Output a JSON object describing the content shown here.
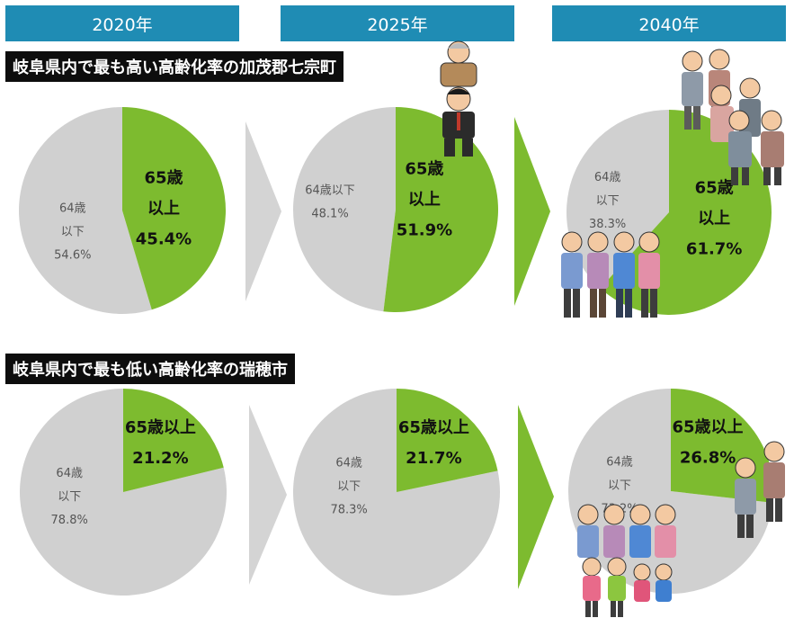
{
  "years": [
    "2020年",
    "2025年",
    "2040年"
  ],
  "rows": [
    {
      "title": "岐阜県内で最も高い高齢化率の加茂郡七宗町"
    },
    {
      "title": "岐阜県内で最も低い高齢化率の瑞穂市"
    }
  ],
  "colors": {
    "header": "#1f8cb4",
    "elderly": "#7dbb2f",
    "younger": "#d0d0d0",
    "title_bg": "#0d0d0d"
  },
  "chart_data": [
    {
      "type": "pie",
      "row": "岐阜県内で最も高い高齢化率の加茂郡七宗町",
      "year": "2020年",
      "slices": [
        {
          "label_lines": [
            "65歳",
            "以上"
          ],
          "pct_text": "45.4%",
          "value": 45.4
        },
        {
          "label_lines": [
            "64歳",
            "以下"
          ],
          "pct_text": "54.6%",
          "value": 54.6
        }
      ]
    },
    {
      "type": "pie",
      "row": "岐阜県内で最も高い高齢化率の加茂郡七宗町",
      "year": "2025年",
      "slices": [
        {
          "label_lines": [
            "65歳",
            "以上"
          ],
          "pct_text": "51.9%",
          "value": 51.9
        },
        {
          "label_lines": [
            "64歳以下"
          ],
          "pct_text": "48.1%",
          "value": 48.1
        }
      ]
    },
    {
      "type": "pie",
      "row": "岐阜県内で最も高い高齢化率の加茂郡七宗町",
      "year": "2040年",
      "slices": [
        {
          "label_lines": [
            "65歳",
            "以上"
          ],
          "pct_text": "61.7%",
          "value": 61.7
        },
        {
          "label_lines": [
            "64歳",
            "以下"
          ],
          "pct_text": "38.3%",
          "value": 38.3
        }
      ]
    },
    {
      "type": "pie",
      "row": "岐阜県内で最も低い高齢化率の瑞穂市",
      "year": "2020年",
      "slices": [
        {
          "label_lines": [
            "65歳以上"
          ],
          "pct_text": "21.2%",
          "value": 21.2
        },
        {
          "label_lines": [
            "64歳",
            "以下"
          ],
          "pct_text": "78.8%",
          "value": 78.8
        }
      ]
    },
    {
      "type": "pie",
      "row": "岐阜県内で最も低い高齢化率の瑞穂市",
      "year": "2025年",
      "slices": [
        {
          "label_lines": [
            "65歳以上"
          ],
          "pct_text": "21.7%",
          "value": 21.7
        },
        {
          "label_lines": [
            "64歳",
            "以下"
          ],
          "pct_text": "78.3%",
          "value": 78.3
        }
      ]
    },
    {
      "type": "pie",
      "row": "岐阜県内で最も低い高齢化率の瑞穂市",
      "year": "2040年",
      "slices": [
        {
          "label_lines": [
            "65歳以上"
          ],
          "pct_text": "26.8%",
          "value": 26.8
        },
        {
          "label_lines": [
            "64歳",
            "以下"
          ],
          "pct_text": "73.2%",
          "value": 73.2
        }
      ]
    }
  ]
}
